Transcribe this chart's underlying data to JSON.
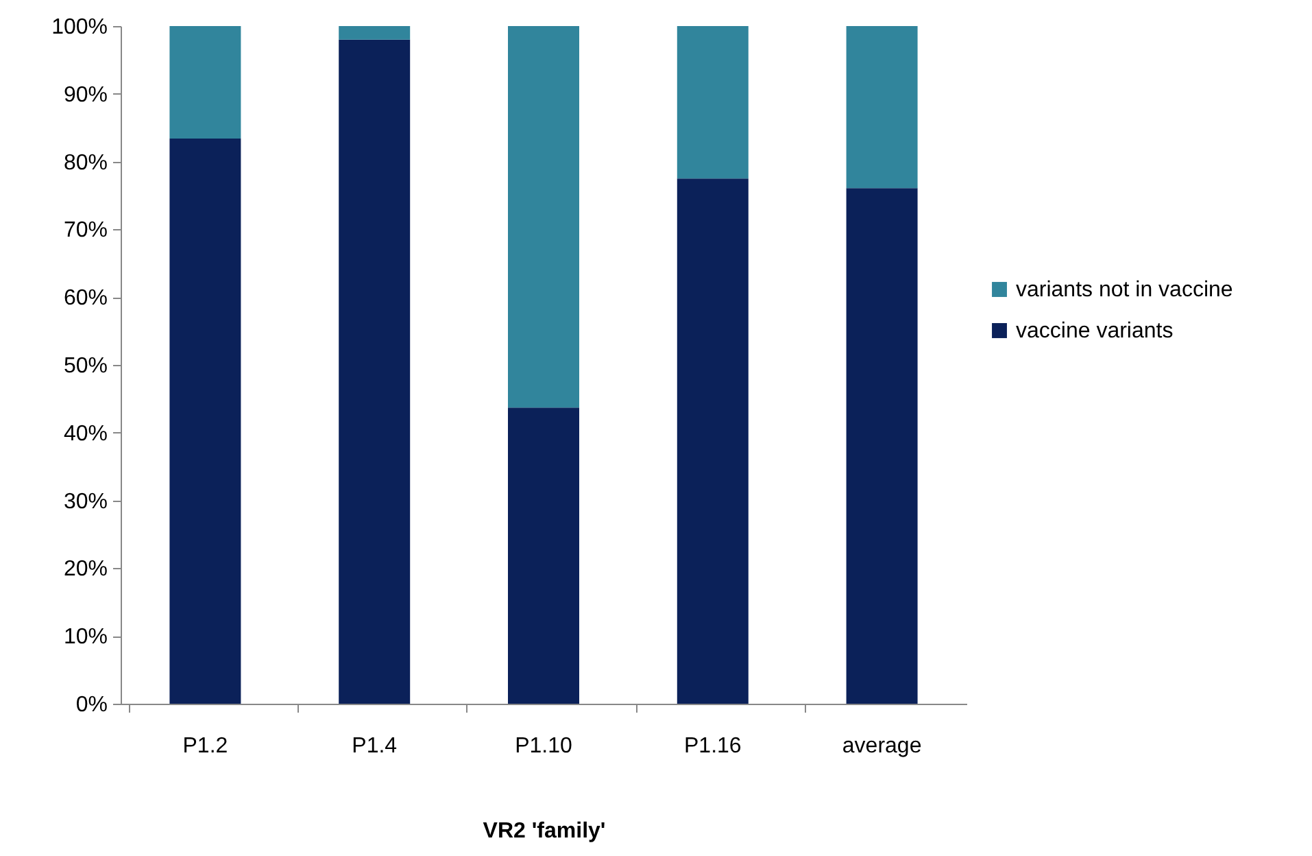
{
  "chart_data": {
    "type": "bar",
    "stacked": true,
    "xlabel": "VR2 'family'",
    "categories": [
      "P1.2",
      "P1.4",
      "P1.10",
      "P1.16",
      "average"
    ],
    "series": [
      {
        "name": "vaccine variants",
        "color": "#0b2159",
        "values": [
          83.4,
          98.0,
          43.7,
          77.5,
          76.1
        ]
      },
      {
        "name": "variants not in vaccine",
        "color": "#31859c",
        "values": [
          16.6,
          2.0,
          56.3,
          22.5,
          23.9
        ]
      }
    ],
    "ylim": [
      0,
      100
    ],
    "yticks": [
      {
        "value": 0,
        "label": "0%"
      },
      {
        "value": 10,
        "label": "10%"
      },
      {
        "value": 20,
        "label": "20%"
      },
      {
        "value": 30,
        "label": "30%"
      },
      {
        "value": 40,
        "label": "40%"
      },
      {
        "value": 50,
        "label": "50%"
      },
      {
        "value": 60,
        "label": "60%"
      },
      {
        "value": 70,
        "label": "70%"
      },
      {
        "value": 80,
        "label": "80%"
      },
      {
        "value": 90,
        "label": "90%"
      },
      {
        "value": 100,
        "label": "100%"
      }
    ],
    "grid": false,
    "legend": "right"
  }
}
